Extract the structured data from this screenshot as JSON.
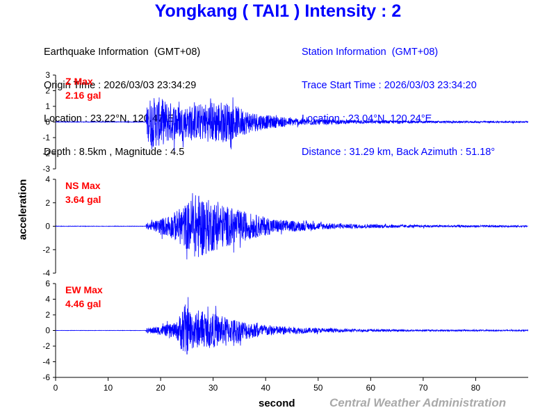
{
  "title": "Yongkang ( TAI1 ) Intensity : 2",
  "earthquake_info": {
    "header": "Earthquake Information  (GMT+08)",
    "origin_time": "Origin Time : 2026/03/03 23:34:29",
    "location": "Location : 23.22°N, 120.47°E",
    "depth_magnitude": "Depth : 8.5km , Magnitude : 4.5"
  },
  "station_info": {
    "header": "Station Information  (GMT+08)",
    "trace_start": "Trace Start Time : 2026/03/03 23:34:20",
    "location": "Location : 23.04°N, 120.24°E",
    "distance": "Distance : 31.29 km, Back Azimuth : 51.18°"
  },
  "credit": "Central Weather Administration",
  "colors": {
    "trace": "#0000ff",
    "title": "#0000ff",
    "max_label": "#ff0000",
    "credit": "#a9a9a9"
  },
  "chart_data": {
    "type": "line",
    "xlabel": "second",
    "ylabel": "acceleration",
    "xlim": [
      0,
      90
    ],
    "x_ticks": [
      0,
      10,
      20,
      30,
      40,
      50,
      60,
      70,
      80
    ],
    "panels": [
      {
        "name": "Z",
        "max_label": "Z Max",
        "max_value": "2.16 gal",
        "ylim": [
          -3,
          3
        ],
        "y_ticks": [
          3,
          2,
          1,
          0,
          -1,
          -2,
          -3
        ],
        "onset_s": 17.2,
        "envelope": [
          [
            17.2,
            0.8
          ],
          [
            18,
            1.6
          ],
          [
            19.5,
            1.6
          ],
          [
            21,
            1.4
          ],
          [
            24,
            1.0
          ],
          [
            28,
            1.2
          ],
          [
            31,
            1.4
          ],
          [
            33,
            1.2
          ],
          [
            37,
            0.7
          ],
          [
            40,
            0.45
          ],
          [
            45,
            0.25
          ],
          [
            55,
            0.12
          ],
          [
            70,
            0.07
          ],
          [
            90,
            0.05
          ]
        ]
      },
      {
        "name": "NS",
        "max_label": "NS Max",
        "max_value": "3.64 gal",
        "ylim": [
          -4,
          4
        ],
        "y_ticks": [
          4,
          2,
          0,
          -2,
          -4
        ],
        "onset_s": 17.2,
        "envelope": [
          [
            17.2,
            0.2
          ],
          [
            19,
            0.5
          ],
          [
            22,
            1.0
          ],
          [
            25,
            2.0
          ],
          [
            27,
            2.9
          ],
          [
            29,
            2.3
          ],
          [
            31,
            2.0
          ],
          [
            34,
            1.5
          ],
          [
            38,
            1.0
          ],
          [
            42,
            0.6
          ],
          [
            48,
            0.35
          ],
          [
            55,
            0.2
          ],
          [
            70,
            0.1
          ],
          [
            90,
            0.07
          ]
        ]
      },
      {
        "name": "EW",
        "max_label": "EW Max",
        "max_value": "4.46 gal",
        "ylim": [
          -6,
          6
        ],
        "y_ticks": [
          6,
          4,
          2,
          0,
          -2,
          -4,
          -6
        ],
        "onset_s": 17.2,
        "envelope": [
          [
            17.2,
            0.3
          ],
          [
            20,
            0.6
          ],
          [
            23,
            1.0
          ],
          [
            24.5,
            3.5
          ],
          [
            26,
            2.5
          ],
          [
            28,
            2.0
          ],
          [
            30,
            2.2
          ],
          [
            32,
            1.8
          ],
          [
            35,
            1.4
          ],
          [
            38,
            0.9
          ],
          [
            42,
            0.6
          ],
          [
            48,
            0.35
          ],
          [
            55,
            0.2
          ],
          [
            70,
            0.1
          ],
          [
            90,
            0.07
          ]
        ]
      }
    ]
  }
}
